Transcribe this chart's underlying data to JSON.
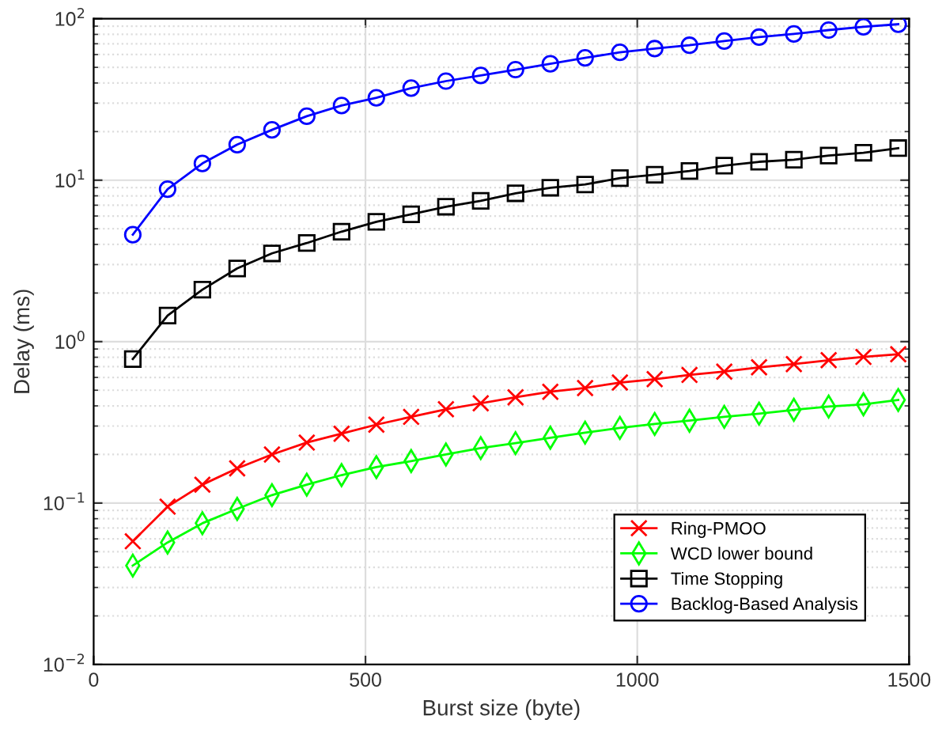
{
  "chart_data": {
    "type": "line",
    "xlabel": "Burst size (byte)",
    "ylabel": "Delay (ms)",
    "x": [
      72,
      136,
      200,
      264,
      328,
      392,
      456,
      520,
      584,
      648,
      712,
      776,
      840,
      904,
      968,
      1032,
      1096,
      1160,
      1224,
      1288,
      1352,
      1416,
      1480
    ],
    "series": [
      {
        "name": "Ring-PMOO",
        "color": "#ff0000",
        "marker": "cross",
        "values": [
          0.058,
          0.095,
          0.13,
          0.164,
          0.2,
          0.237,
          0.269,
          0.306,
          0.342,
          0.381,
          0.415,
          0.452,
          0.489,
          0.516,
          0.558,
          0.585,
          0.622,
          0.652,
          0.693,
          0.726,
          0.767,
          0.804,
          0.836
        ]
      },
      {
        "name": "WCD lower bound",
        "color": "#00ff00",
        "marker": "diamond",
        "values": [
          0.041,
          0.057,
          0.075,
          0.092,
          0.112,
          0.13,
          0.149,
          0.167,
          0.182,
          0.2,
          0.219,
          0.235,
          0.254,
          0.273,
          0.292,
          0.309,
          0.324,
          0.342,
          0.358,
          0.378,
          0.396,
          0.409,
          0.435
        ]
      },
      {
        "name": "Time Stopping",
        "color": "#000000",
        "marker": "square",
        "values": [
          0.78,
          1.45,
          2.1,
          2.84,
          3.52,
          4.08,
          4.8,
          5.52,
          6.15,
          6.85,
          7.45,
          8.3,
          8.98,
          9.4,
          10.3,
          10.8,
          11.4,
          12.3,
          13.0,
          13.4,
          14.2,
          14.8,
          15.8
        ]
      },
      {
        "name": "Backlog-Based Analysis",
        "color": "#0000ff",
        "marker": "circle",
        "values": [
          4.6,
          8.8,
          12.7,
          16.6,
          20.5,
          24.9,
          29.0,
          32.4,
          37.2,
          41.1,
          44.5,
          48.4,
          52.6,
          57.3,
          61.9,
          65.3,
          68.5,
          72.8,
          76.9,
          80.5,
          85.1,
          89.1,
          92.5
        ]
      }
    ],
    "log": "y",
    "xlim": [
      0,
      1500
    ],
    "xticks": [
      0,
      500,
      1000,
      1500
    ],
    "ylim": [
      0.01,
      100
    ],
    "yticks": [
      {
        "value": 0.01,
        "label": "10$^{−2}$"
      },
      {
        "value": 0.1,
        "label": "10$^{−1}$"
      },
      {
        "value": 1,
        "label": "10$^{0}$"
      },
      {
        "value": 10,
        "label": "10$^{1}$"
      },
      {
        "value": 100,
        "label": "10$^{2}$"
      }
    ],
    "grid": true,
    "legend": "bottom right",
    "line_style": "solid"
  }
}
